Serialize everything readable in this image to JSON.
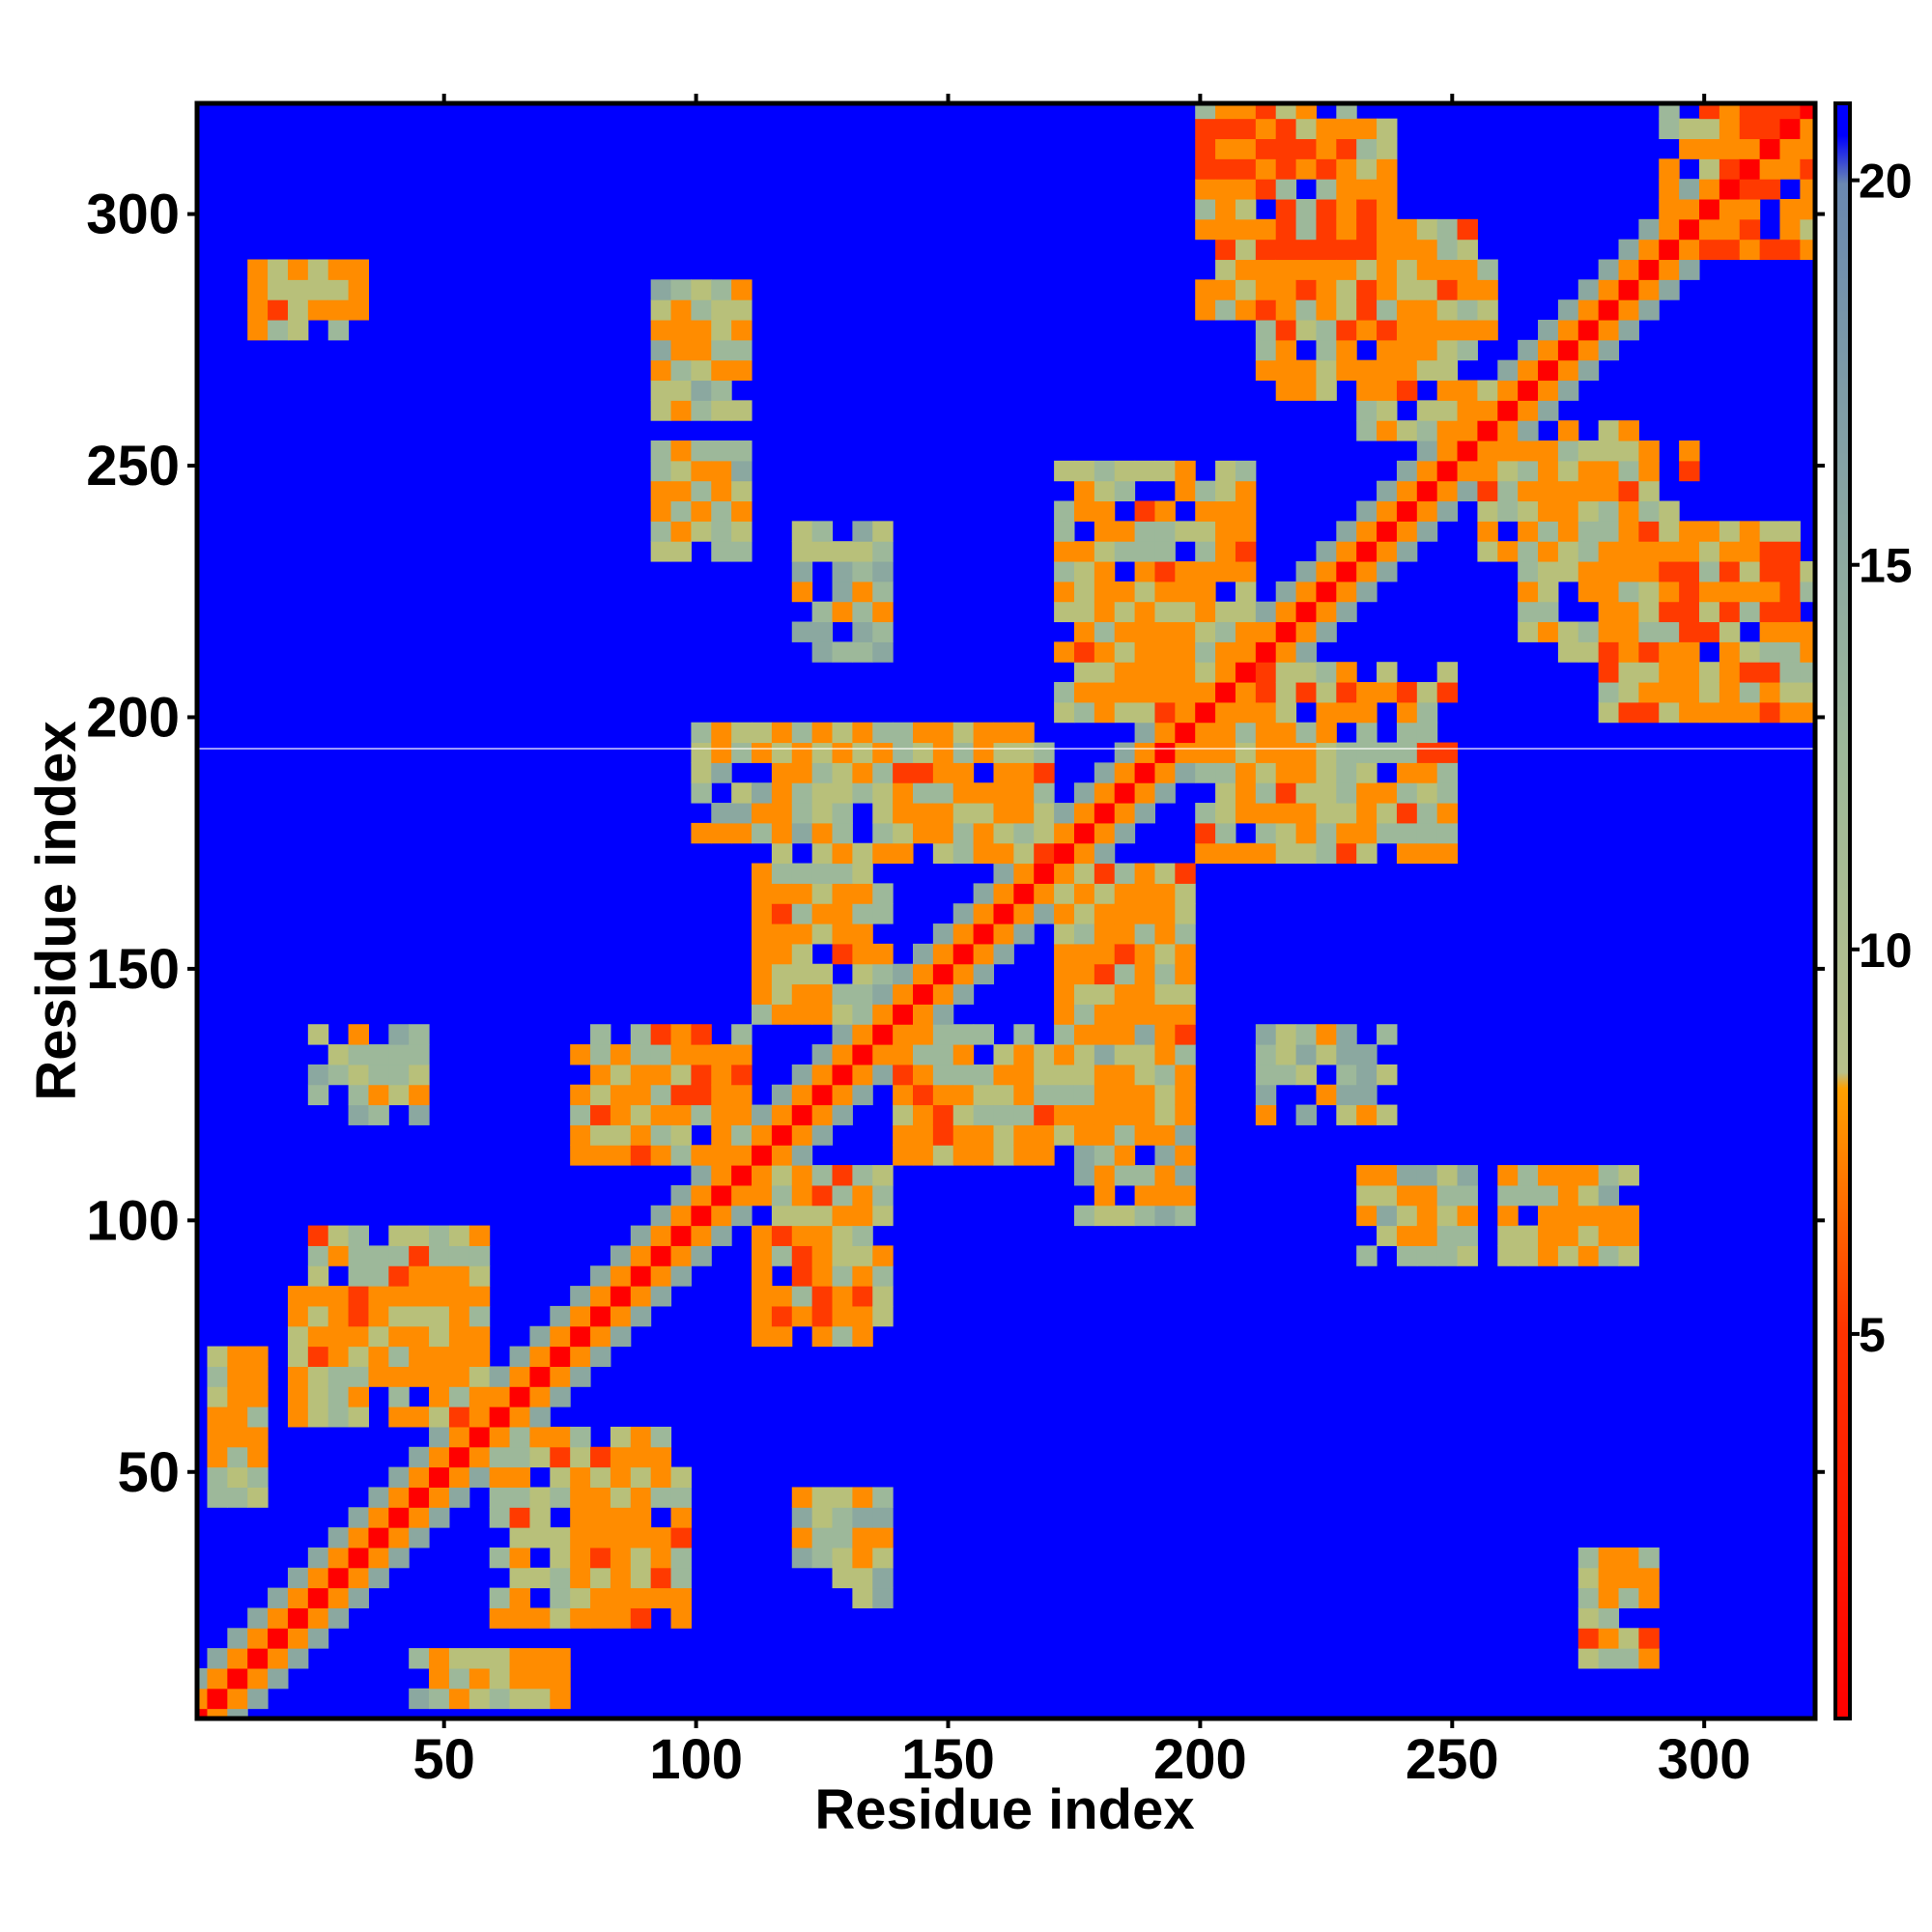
{
  "chart_data": {
    "type": "heatmap",
    "title": "",
    "xlabel": "Residue index",
    "ylabel": "Residue index",
    "xlim": [
      1,
      322
    ],
    "ylim": [
      1,
      322
    ],
    "x_ticks": [
      50,
      100,
      150,
      200,
      250,
      300
    ],
    "y_ticks": [
      50,
      100,
      150,
      200,
      250,
      300
    ],
    "colorbar": {
      "min": 0,
      "max": 21,
      "ticks": [
        5,
        10,
        15,
        20
      ],
      "colors": {
        "low": "#ff0000",
        "mid_low": "#ff8c00",
        "mid": "#9db89a",
        "high": "#7090a8",
        "background": "#0000ff"
      }
    },
    "description_of_values": "Residue-residue distance map (distance values, capped at ~21); low values along the main diagonal and in contact bands",
    "diagonal_value": 1,
    "background_value": 21,
    "contact_bands": [
      {
        "x": [
          15,
          30
        ],
        "y": [
          280,
          292
        ],
        "value": 9
      },
      {
        "x": [
          90,
          110
        ],
        "y": [
          260,
          285
        ],
        "value": 9
      },
      {
        "x": [
          95,
          110
        ],
        "y": [
          230,
          250
        ],
        "value": 10
      },
      {
        "x": [
          120,
          140
        ],
        "y": [
          210,
          240
        ],
        "value": 10
      },
      {
        "x": [
          170,
          210
        ],
        "y": [
          200,
          250
        ],
        "value": 8
      },
      {
        "x": [
          200,
          230
        ],
        "y": [
          175,
          210
        ],
        "value": 8
      },
      {
        "x": [
          140,
          170
        ],
        "y": [
          170,
          200
        ],
        "value": 8
      },
      {
        "x": [
          115,
          150
        ],
        "y": [
          170,
          200
        ],
        "value": 9
      },
      {
        "x": [
          110,
          140
        ],
        "y": [
          140,
          165
        ],
        "value": 8
      },
      {
        "x": [
          175,
          200
        ],
        "y": [
          135,
          165
        ],
        "value": 8
      },
      {
        "x": [
          140,
          170
        ],
        "y": [
          110,
          135
        ],
        "value": 8
      },
      {
        "x": [
          75,
          110
        ],
        "y": [
          110,
          135
        ],
        "value": 8
      },
      {
        "x": [
          110,
          140
        ],
        "y": [
          80,
          110
        ],
        "value": 8
      },
      {
        "x": [
          175,
          200
        ],
        "y": [
          100,
          130
        ],
        "value": 9
      },
      {
        "x": [
          230,
          255
        ],
        "y": [
          90,
          110
        ],
        "value": 9
      },
      {
        "x": [
          260,
          285
        ],
        "y": [
          90,
          110
        ],
        "value": 9
      },
      {
        "x": [
          200,
          240
        ],
        "y": [
          280,
          320
        ],
        "value": 7
      },
      {
        "x": [
          230,
          260
        ],
        "y": [
          255,
          290
        ],
        "value": 8
      },
      {
        "x": [
          265,
          300
        ],
        "y": [
          210,
          255
        ],
        "value": 8
      },
      {
        "x": [
          295,
          322
        ],
        "y": [
          200,
          230
        ],
        "value": 8
      },
      {
        "x": [
          290,
          322
        ],
        "y": [
          290,
          322
        ],
        "value": 7
      },
      {
        "x": [
          20,
          60
        ],
        "y": [
          70,
          100
        ],
        "value": 8
      },
      {
        "x": [
          60,
          90
        ],
        "y": [
          20,
          60
        ],
        "value": 8
      },
      {
        "x": [
          5,
          15
        ],
        "y": [
          50,
          75
        ],
        "value": 9
      },
      {
        "x": [
          45,
          75
        ],
        "y": [
          5,
          15
        ],
        "value": 9
      },
      {
        "x": [
          275,
          290
        ],
        "y": [
          10,
          35
        ],
        "value": 8
      },
      {
        "x": [
          25,
          45
        ],
        "y": [
          125,
          140
        ],
        "value": 10
      },
      {
        "x": [
          120,
          135
        ],
        "y": [
          30,
          45
        ],
        "value": 10
      }
    ]
  }
}
